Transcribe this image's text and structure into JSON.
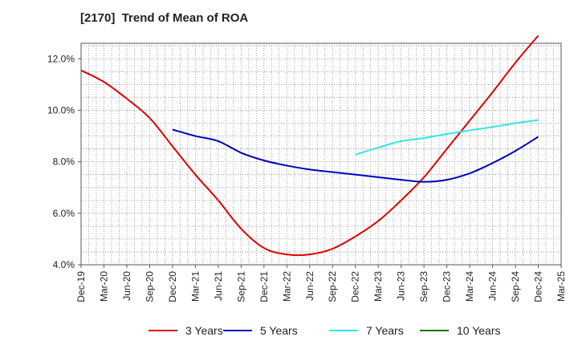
{
  "chart_data": {
    "type": "line",
    "title": "[2170]  Trend of Mean of ROA",
    "xlabel": "",
    "ylabel": "",
    "categories": [
      "Dec-19",
      "Mar-20",
      "Jun-20",
      "Sep-20",
      "Dec-20",
      "Mar-21",
      "Jun-21",
      "Sep-21",
      "Dec-21",
      "Mar-22",
      "Jun-22",
      "Sep-22",
      "Dec-22",
      "Mar-23",
      "Jun-23",
      "Sep-23",
      "Dec-23",
      "Mar-24",
      "Jun-24",
      "Sep-24",
      "Dec-24",
      "Mar-25"
    ],
    "yticks": [
      "4.0%",
      "6.0%",
      "8.0%",
      "10.0%",
      "12.0%"
    ],
    "ylim": [
      4.0,
      12.6
    ],
    "grid": true,
    "legend_position": "bottom",
    "series": [
      {
        "name": "3 Years",
        "color": "#dd0000",
        "values": [
          11.55,
          11.1,
          10.45,
          9.7,
          8.6,
          7.5,
          6.5,
          5.4,
          4.65,
          4.4,
          4.4,
          4.62,
          5.1,
          5.7,
          6.5,
          7.4,
          8.5,
          9.6,
          10.7,
          11.85,
          12.9,
          null
        ]
      },
      {
        "name": "5 Years",
        "color": "#0000bb",
        "values": [
          null,
          null,
          null,
          null,
          9.25,
          9.0,
          8.8,
          8.35,
          8.05,
          7.85,
          7.7,
          7.6,
          7.5,
          7.4,
          7.3,
          7.22,
          7.3,
          7.55,
          7.95,
          8.42,
          8.97,
          null
        ]
      },
      {
        "name": "7 Years",
        "color": "#33e5e5",
        "values": [
          null,
          null,
          null,
          null,
          null,
          null,
          null,
          null,
          null,
          null,
          null,
          null,
          8.28,
          8.55,
          8.8,
          8.92,
          9.08,
          9.22,
          9.35,
          9.5,
          9.62,
          null
        ]
      },
      {
        "name": "10 Years",
        "color": "#007700",
        "values": [
          null,
          null,
          null,
          null,
          null,
          null,
          null,
          null,
          null,
          null,
          null,
          null,
          null,
          null,
          null,
          null,
          null,
          null,
          null,
          null,
          null,
          null
        ]
      }
    ]
  }
}
